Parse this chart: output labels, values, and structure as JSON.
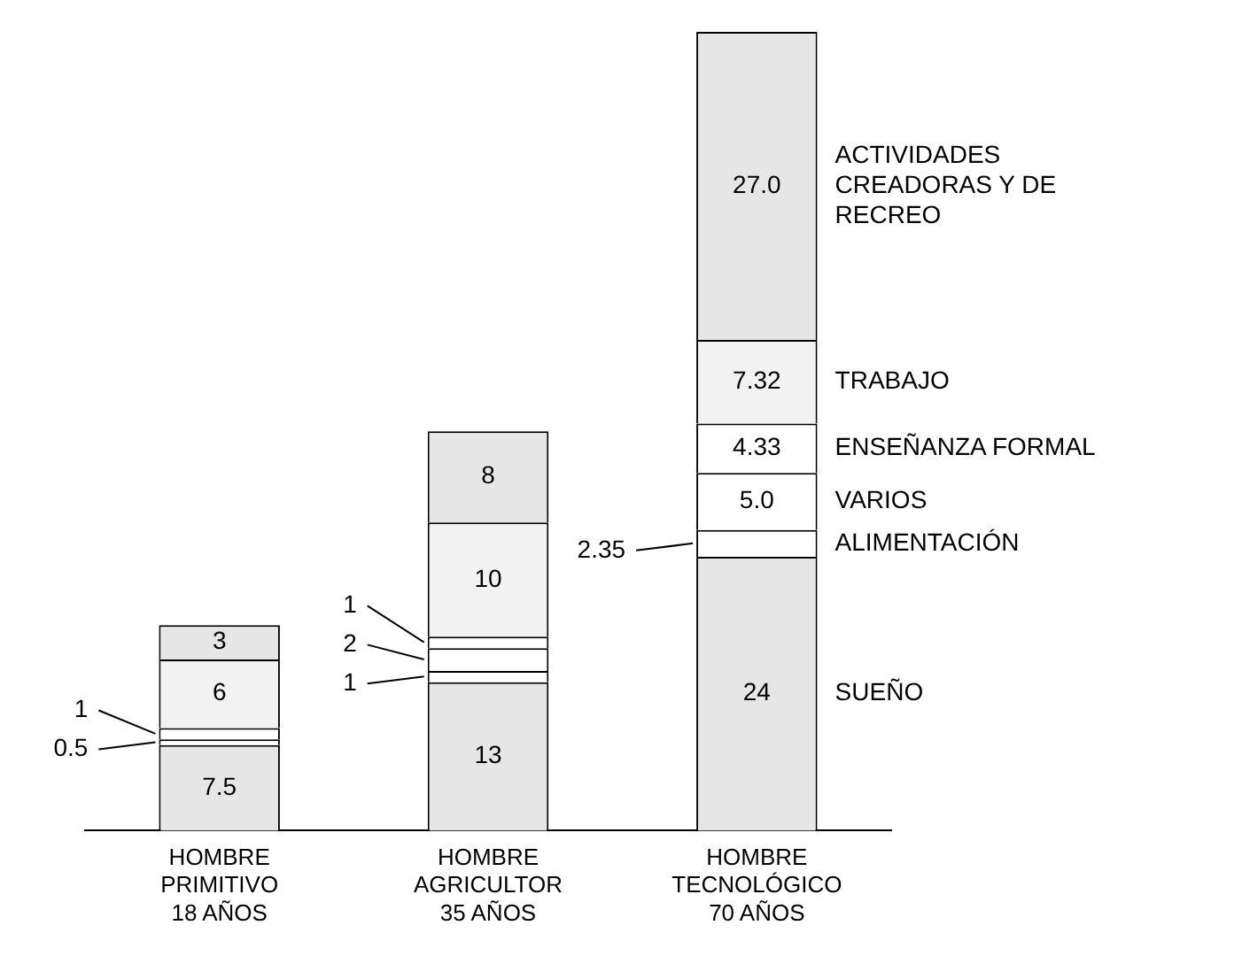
{
  "chart_data": {
    "type": "bar",
    "stacked": true,
    "legend": false,
    "grid": false,
    "data_labels": true,
    "categories": [
      "HOMBRE\nPRIMITIVO\n18 AÑOS",
      "HOMBRE\nAGRICULTOR\n35 AÑOS",
      "HOMBRE\nTECNOLÓGICO\n70 AÑOS"
    ],
    "series": [
      {
        "name": "SUEÑO",
        "color": "#e6e6e6",
        "values": [
          7.5,
          13,
          24
        ],
        "value_labels": [
          "7.5",
          "13",
          "24"
        ]
      },
      {
        "name": "ALIMENTACIÓN",
        "color": "#ffffff",
        "values": [
          0.5,
          1,
          2.35
        ],
        "value_labels": [
          "0.5",
          "1",
          "2.35"
        ]
      },
      {
        "name": "VARIOS",
        "color": "#ffffff",
        "values": [
          1,
          2,
          5.0
        ],
        "value_labels": [
          "1",
          "2",
          "5.0"
        ]
      },
      {
        "name": "ENSEÑANZA FORMAL",
        "color": "#ffffff",
        "values": [
          null,
          1,
          4.33
        ],
        "value_labels": [
          null,
          "1",
          "4.33"
        ]
      },
      {
        "name": "TRABAJO",
        "color": "#f2f2f2",
        "values": [
          6,
          10,
          7.32
        ],
        "value_labels": [
          "6",
          "10",
          "7.32"
        ]
      },
      {
        "name": "ACTIVIDADES CREADORAS Y DE RECREO",
        "color": "#e6e6e6",
        "values": [
          3,
          8,
          27.0
        ],
        "value_labels": [
          "3",
          "8",
          "27.0"
        ]
      }
    ]
  }
}
